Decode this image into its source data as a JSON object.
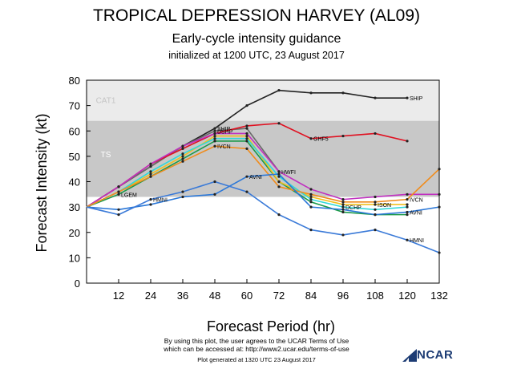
{
  "header": {
    "title": "TROPICAL DEPRESSION HARVEY (AL09)",
    "subtitle": "Early-cycle intensity guidance",
    "init": "initialized at 1200 UTC, 23 August 2017"
  },
  "footer": {
    "notice1": "By using this plot, the user agrees to the UCAR Terms of Use",
    "notice2": "which can be accessed at: http://www2.ucar.edu/terms-of-use",
    "generated": "Plot generated at 1320 UTC  23 August 2017",
    "logo_text": "NCAR",
    "logo_icon": "ncar-sail-logo"
  },
  "chart_data": {
    "type": "line",
    "xlabel": "Forecast Period (hr)",
    "ylabel": "Forecast Intensity (kt)",
    "xlim": [
      0,
      132
    ],
    "ylim": [
      0,
      80
    ],
    "xticks": [
      12,
      24,
      36,
      48,
      60,
      72,
      84,
      96,
      108,
      120,
      132
    ],
    "yticks": [
      0,
      10,
      20,
      30,
      40,
      50,
      60,
      70,
      80
    ],
    "bands": [
      {
        "label": "TS",
        "from": 34,
        "to": 64,
        "color": "#c8c8c8"
      },
      {
        "label": "CAT1",
        "from": 64,
        "to": 82,
        "color": "#ebebeb"
      }
    ],
    "series": [
      {
        "name": "SHIP",
        "color": "#222222",
        "label_x": 48,
        "end_label_x": 120,
        "x": [
          0,
          12,
          24,
          36,
          48,
          60,
          72,
          84,
          96,
          108,
          120
        ],
        "y": [
          30,
          38,
          46,
          54,
          61,
          70,
          76,
          75,
          75,
          73,
          73
        ]
      },
      {
        "name": "DSHP",
        "color": "#6a6a6a",
        "label_x": 48,
        "x": [
          0,
          12,
          24,
          36,
          48,
          60,
          72
        ],
        "y": [
          30,
          38,
          46,
          54,
          60,
          61,
          44
        ]
      },
      {
        "name": "GHF5",
        "color": "#e01020",
        "label_x": 84,
        "x": [
          0,
          12,
          24,
          36,
          48,
          60,
          72,
          84,
          96,
          108,
          120
        ],
        "y": [
          30,
          38,
          47,
          53,
          59,
          62,
          63,
          57,
          58,
          59,
          56
        ]
      },
      {
        "name": "HWFI",
        "color": "#c030c0",
        "label_x": 72,
        "x": [
          0,
          12,
          24,
          36,
          48,
          60,
          72,
          84,
          96,
          108,
          120,
          132
        ],
        "y": [
          30,
          38,
          47,
          54,
          59,
          59,
          44,
          37,
          33,
          34,
          35,
          35
        ]
      },
      {
        "name": "LGEM",
        "color": "#1c9a4a",
        "label_x": 12,
        "x": [
          0,
          12,
          24,
          36,
          48,
          60,
          72,
          84,
          96,
          108,
          120
        ],
        "y": [
          30,
          35,
          42,
          49,
          56,
          56,
          40,
          32,
          28,
          27,
          27
        ]
      },
      {
        "name": "ISON",
        "color": "#f0c020",
        "label_x": 108,
        "x": [
          0,
          12,
          24,
          36,
          48,
          60,
          72,
          84,
          96,
          108,
          120
        ],
        "y": [
          30,
          36,
          43,
          50,
          58,
          58,
          40,
          34,
          31,
          31,
          31
        ]
      },
      {
        "name": "DCHP",
        "color": "#30d8d8",
        "label_x": 96,
        "x": [
          0,
          12,
          24,
          36,
          48,
          60,
          72,
          84,
          96,
          108,
          120
        ],
        "y": [
          30,
          36,
          44,
          51,
          57,
          57,
          42,
          33,
          30,
          29,
          30
        ]
      },
      {
        "name": "IVCN",
        "color": "#f08c1c",
        "label_x": 48,
        "end_label_x": 120,
        "x": [
          0,
          12,
          24,
          36,
          48,
          60,
          72,
          84,
          96,
          108,
          120,
          132
        ],
        "y": [
          30,
          36,
          42,
          48,
          54,
          53,
          38,
          35,
          32,
          32,
          33,
          45
        ]
      },
      {
        "name": "AVNI",
        "color": "#2b78d8",
        "label_x": 60,
        "end_label_x": 120,
        "x": [
          0,
          12,
          24,
          36,
          48,
          60,
          72,
          84,
          96,
          108,
          120,
          132
        ],
        "y": [
          30,
          29,
          31,
          34,
          35,
          42,
          43,
          30,
          29,
          27,
          28,
          30
        ]
      },
      {
        "name": "HMNI",
        "color": "#3a7ad8",
        "label_x": 24,
        "end_label_x": 120,
        "x": [
          0,
          12,
          24,
          36,
          48,
          60,
          72,
          84,
          96,
          108,
          120,
          132
        ],
        "y": [
          30,
          27,
          33,
          36,
          40,
          36,
          27,
          21,
          19,
          21,
          17,
          12
        ]
      }
    ]
  }
}
